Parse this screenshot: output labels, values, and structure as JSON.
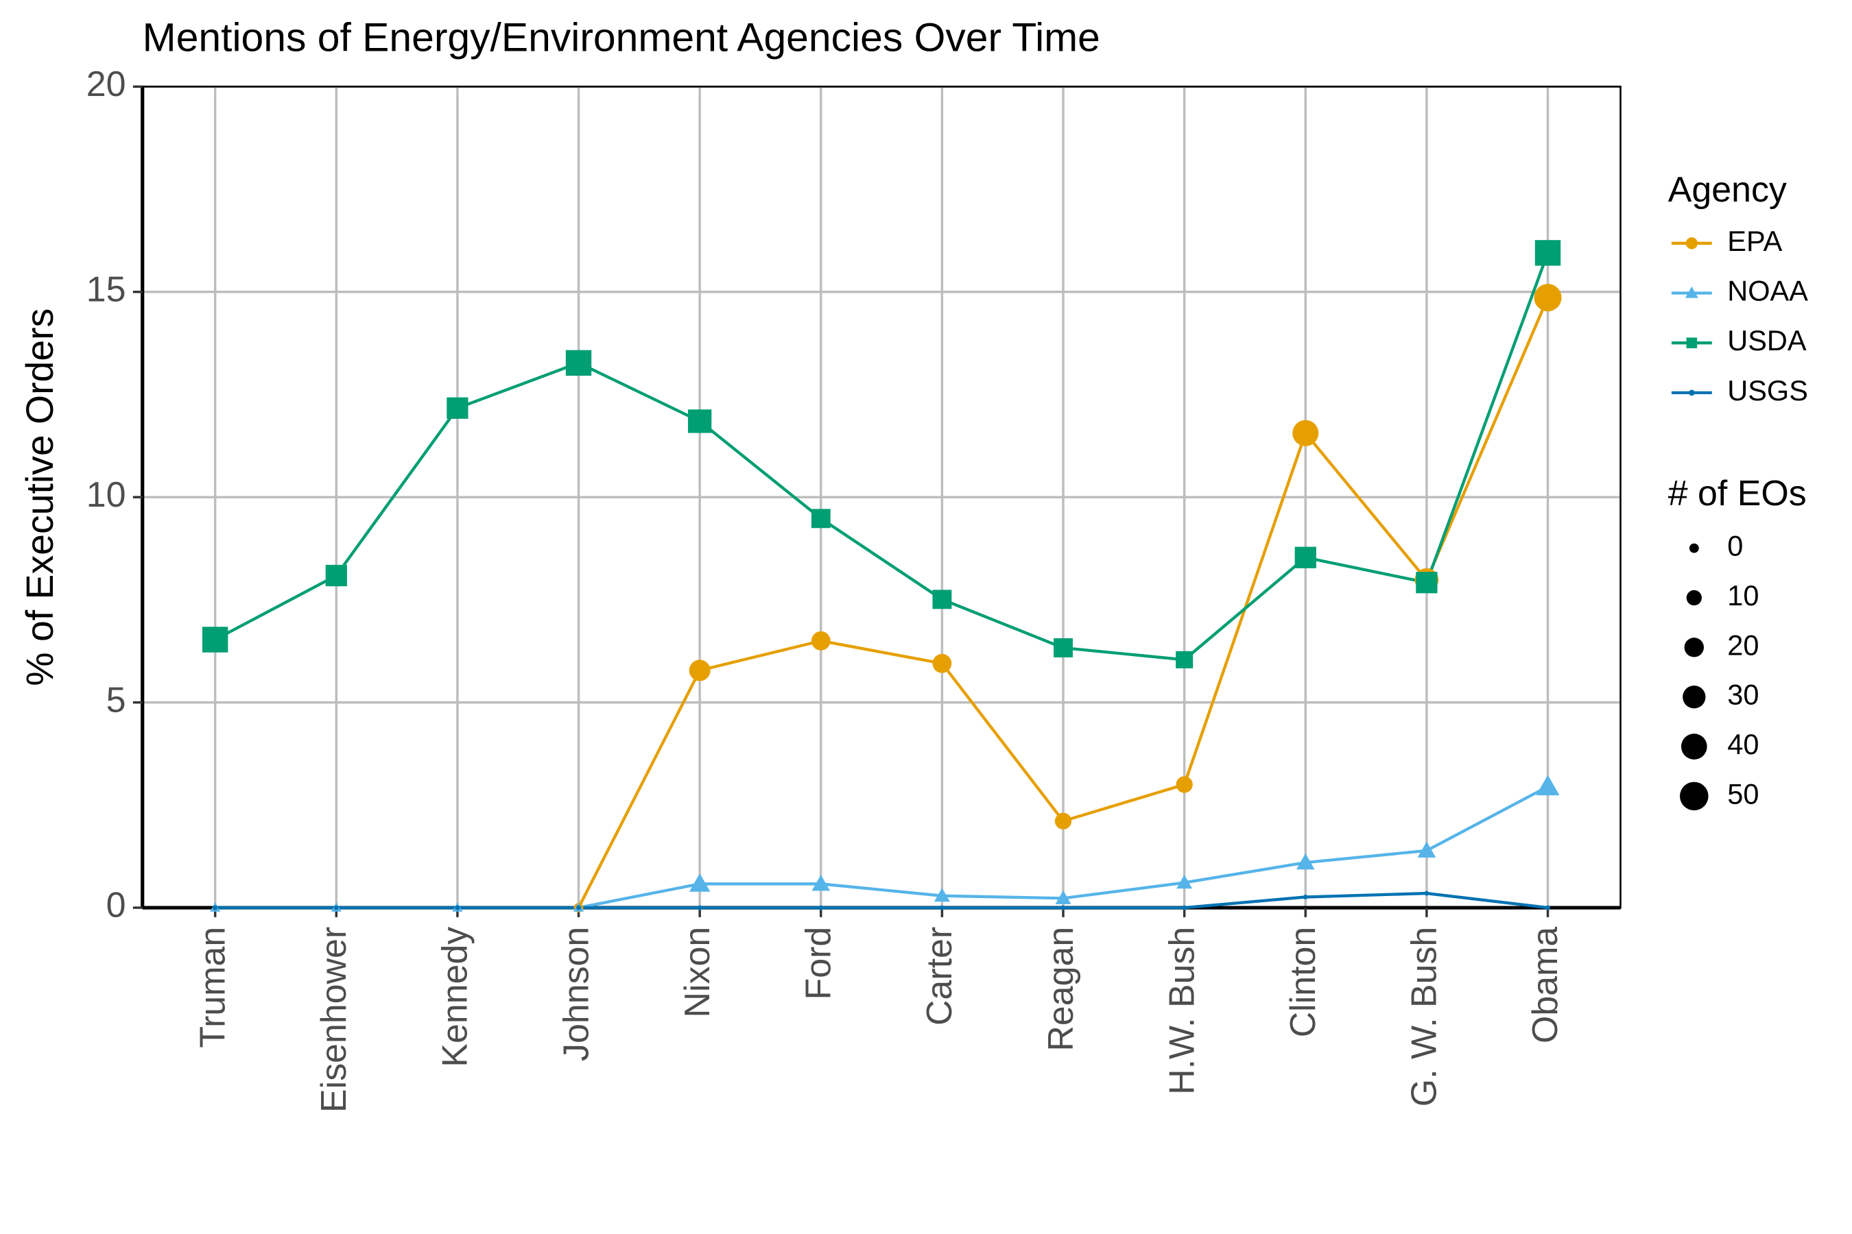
{
  "chart_data": {
    "type": "line",
    "title": "Mentions of Energy/Environment Agencies Over Time",
    "y_label": "% of Executive Orders",
    "categories": [
      "Truman",
      "Eisenhower",
      "Kennedy",
      "Johnson",
      "Nixon",
      "Ford",
      "Carter",
      "Reagan",
      "H.W. Bush",
      "Clinton",
      "G. W. Bush",
      "Obama"
    ],
    "ylim": [
      0,
      20
    ],
    "yticks": [
      0,
      5,
      10,
      15,
      20
    ],
    "grid": true,
    "legend_title": "Agency",
    "size_legend": {
      "title": "# of EOs",
      "values": [
        0,
        10,
        20,
        30,
        40,
        50
      ]
    },
    "series": [
      {
        "name": "EPA",
        "color": "#E69F00",
        "marker": "circle",
        "values": [
          null,
          null,
          null,
          0,
          5.78,
          6.5,
          5.95,
          2.11,
          3.0,
          11.56,
          7.98,
          14.86
        ],
        "sizes": [
          null,
          null,
          null,
          0,
          25,
          19,
          19,
          13,
          13,
          41,
          33,
          46
        ]
      },
      {
        "name": "NOAA",
        "color": "#56B4E9",
        "marker": "triangle",
        "values": [
          0,
          0,
          0,
          0,
          0.58,
          0.58,
          0.29,
          0.23,
          0.61,
          1.1,
          1.39,
          2.95
        ],
        "sizes": [
          0,
          0,
          0,
          0,
          19,
          13,
          8,
          8,
          8,
          13,
          13,
          25
        ]
      },
      {
        "name": "USDA",
        "color": "#009E73",
        "marker": "square",
        "values": [
          6.53,
          8.09,
          12.17,
          13.27,
          11.85,
          9.48,
          7.51,
          6.33,
          6.04,
          8.53,
          7.92,
          15.95
        ],
        "sizes": [
          50,
          33,
          33,
          50,
          41,
          25,
          25,
          25,
          19,
          33,
          33,
          50
        ]
      },
      {
        "name": "USGS",
        "color": "#0072B2",
        "marker": "plus",
        "values": [
          0,
          0,
          0,
          0,
          0,
          0,
          0,
          0,
          0,
          0.26,
          0.35,
          0
        ],
        "sizes": [
          0,
          0,
          0,
          0,
          0,
          0,
          0,
          0,
          0,
          0,
          0,
          0
        ]
      }
    ]
  }
}
